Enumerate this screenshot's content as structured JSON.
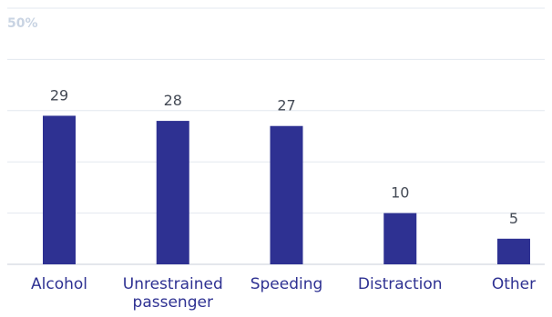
{
  "colors": {
    "bar": "#2e3192",
    "category_text": "#2e3192",
    "value_text": "#444a55",
    "y_label": "#c9d4e3",
    "grid": "#e3e8ef"
  },
  "chart_data": {
    "type": "bar",
    "title": "",
    "xlabel": "",
    "ylabel": "",
    "ylim": [
      0,
      50
    ],
    "y_tick_labels": [
      "50%"
    ],
    "grid": true,
    "categories": [
      [
        "Alcohol"
      ],
      [
        "Unrestrained",
        "passenger"
      ],
      [
        "Speeding"
      ],
      [
        "Distraction"
      ],
      [
        "Other"
      ]
    ],
    "values": [
      29,
      28,
      27,
      10,
      5
    ],
    "value_labels": [
      "29",
      "28",
      "27",
      "10",
      "5"
    ]
  }
}
